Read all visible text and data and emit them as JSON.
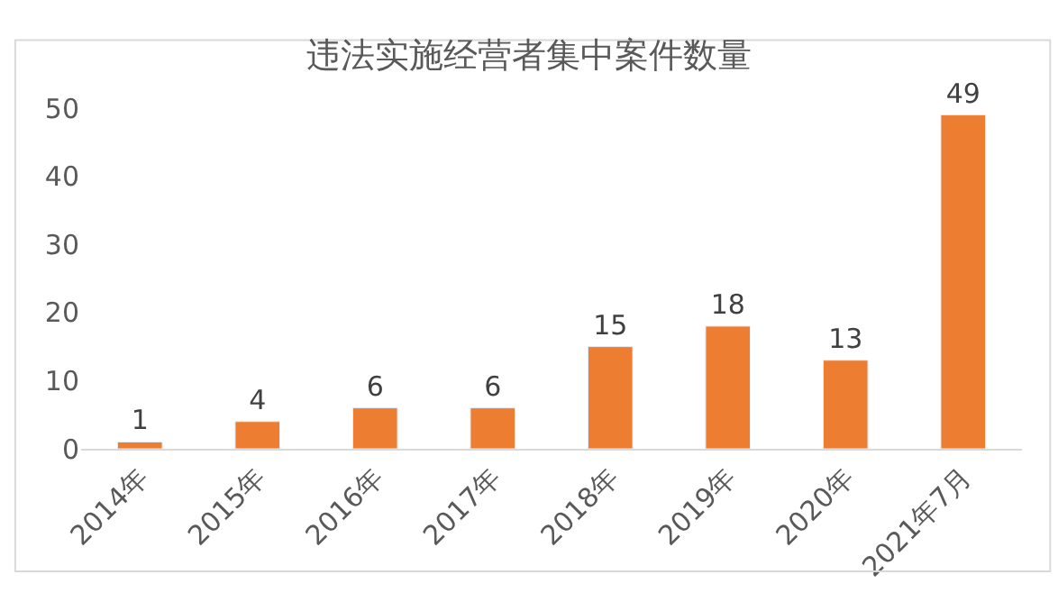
{
  "chart_data": {
    "type": "bar",
    "title": "违法实施经营者集中案件数量",
    "categories": [
      "2014年",
      "2015年",
      "2016年",
      "2017年",
      "2018年",
      "2019年",
      "2020年",
      "2021年7月"
    ],
    "values": [
      1,
      4,
      6,
      6,
      15,
      18,
      13,
      49
    ],
    "color": "#ed7d31",
    "ylim": [
      0,
      50
    ],
    "yticks": [
      0,
      10,
      20,
      30,
      40,
      50
    ],
    "grid": false,
    "data_labels": true
  }
}
